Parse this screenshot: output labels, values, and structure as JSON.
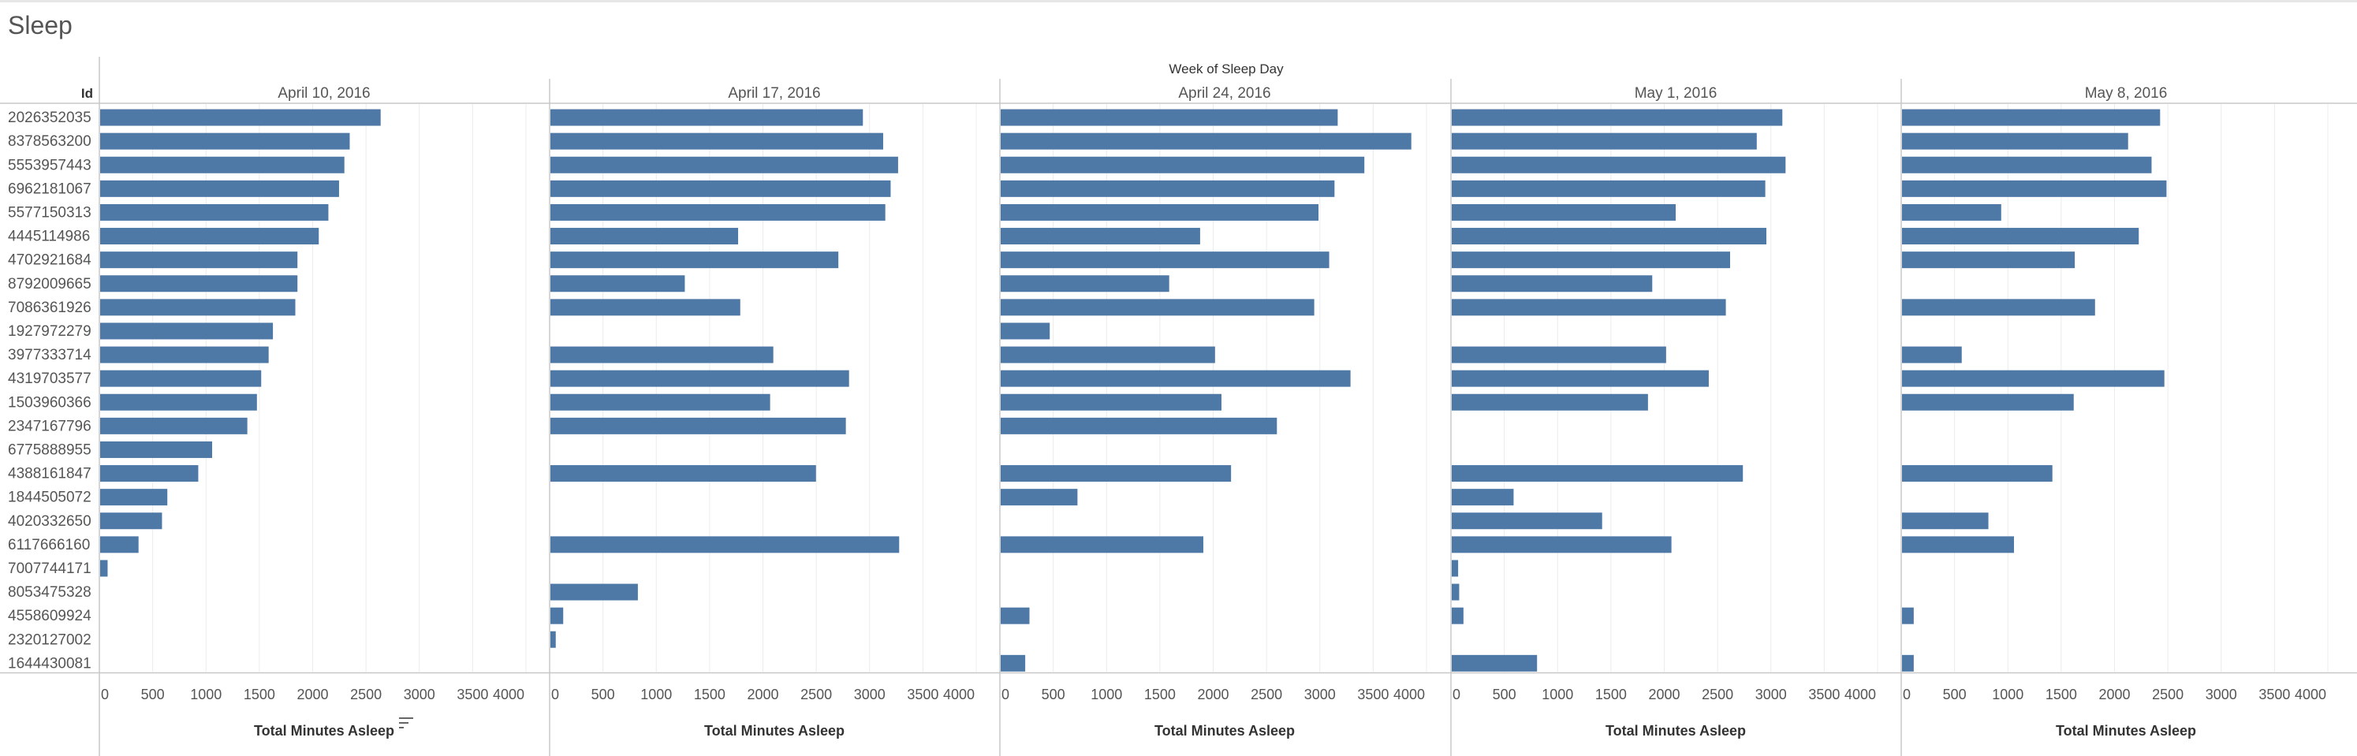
{
  "sheet": {
    "title": "Sleep"
  },
  "header": {
    "column_header": "Week of Sleep Day",
    "row_field": "Id",
    "axis_title": "Total Minutes Asleep"
  },
  "colors": {
    "bar": "#4e79a7",
    "grid": "#ececec",
    "divider": "#c8c8c8",
    "text": "#555555",
    "label": "#333333"
  },
  "icons": {
    "sort": "sort-descending-icon"
  },
  "chart_data": {
    "type": "bar",
    "orientation": "horizontal",
    "column_header": "Week of Sleep Day",
    "row_header": "Id",
    "xlabel": "Total Minutes Asleep",
    "xlim": [
      0,
      4000
    ],
    "xticks": [
      0,
      500,
      1000,
      1500,
      2000,
      2500,
      3000,
      3500,
      4000
    ],
    "grid": true,
    "categories": [
      "2026352035",
      "8378563200",
      "5553957443",
      "6962181067",
      "5577150313",
      "4445114986",
      "4702921684",
      "8792009665",
      "7086361926",
      "1927972279",
      "3977333714",
      "4319703577",
      "1503960366",
      "2347167796",
      "6775888955",
      "4388161847",
      "1844505072",
      "4020332650",
      "6117666160",
      "7007744171",
      "8053475328",
      "4558609924",
      "2320127002",
      "1644430081"
    ],
    "series": [
      {
        "name": "April 10, 2016",
        "values": [
          2630,
          2340,
          2290,
          2240,
          2140,
          2050,
          1850,
          1850,
          1830,
          1620,
          1580,
          1510,
          1470,
          1380,
          1050,
          920,
          630,
          580,
          360,
          70,
          null,
          null,
          null,
          null
        ]
      },
      {
        "name": "April 17, 2016",
        "values": [
          2930,
          3120,
          3260,
          3190,
          3140,
          1760,
          2700,
          1260,
          1780,
          null,
          2090,
          2800,
          2060,
          2770,
          null,
          2490,
          null,
          null,
          3270,
          null,
          820,
          120,
          50,
          null
        ]
      },
      {
        "name": "April 24, 2016",
        "values": [
          3160,
          3850,
          3410,
          3130,
          2980,
          1870,
          3080,
          1580,
          2940,
          460,
          2010,
          3280,
          2070,
          2590,
          null,
          2160,
          720,
          null,
          1900,
          null,
          null,
          270,
          null,
          230
        ]
      },
      {
        "name": "May 1, 2016",
        "values": [
          3100,
          2860,
          3130,
          2940,
          2100,
          2950,
          2610,
          1880,
          2570,
          null,
          2010,
          2410,
          1840,
          null,
          null,
          2730,
          580,
          1410,
          2060,
          60,
          70,
          110,
          null,
          800
        ]
      },
      {
        "name": "May 8, 2016",
        "values": [
          2420,
          2120,
          2340,
          2480,
          930,
          2220,
          1620,
          null,
          1810,
          null,
          560,
          2460,
          1610,
          null,
          null,
          1410,
          null,
          810,
          1050,
          null,
          null,
          110,
          null,
          110
        ]
      }
    ]
  }
}
